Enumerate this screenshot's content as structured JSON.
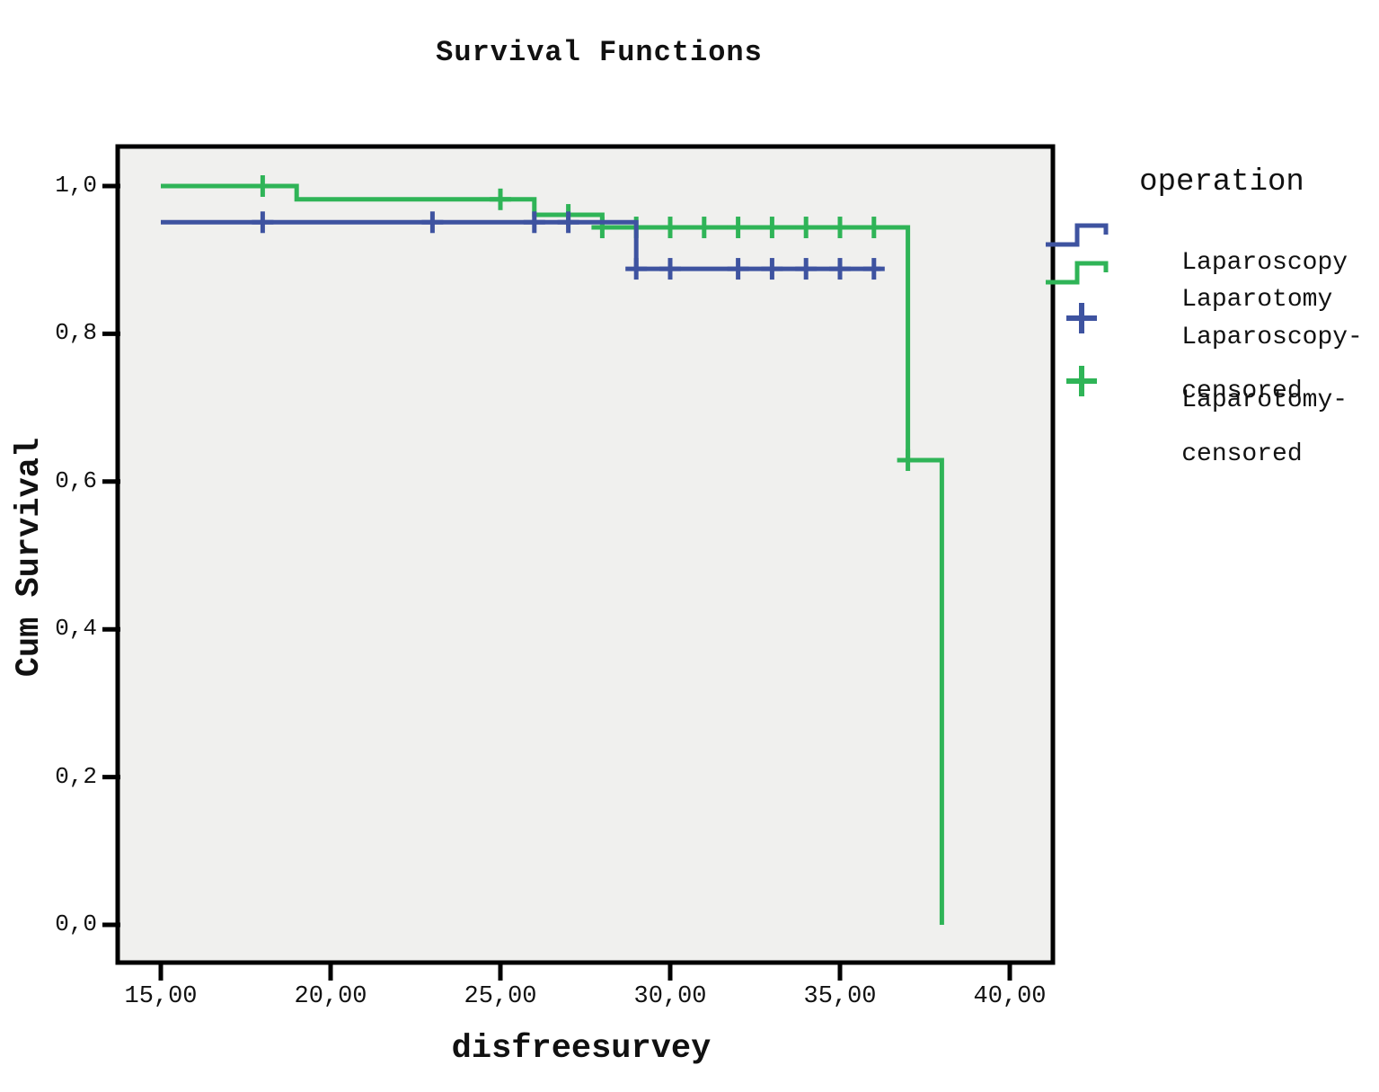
{
  "title": "Survival Functions",
  "axes": {
    "x": {
      "label": "disfreesurvey",
      "tick_labels": [
        "15,00",
        "20,00",
        "25,00",
        "30,00",
        "35,00",
        "40,00"
      ],
      "tick_values": [
        15,
        20,
        25,
        30,
        35,
        40
      ],
      "range": [
        13.7,
        41.3
      ]
    },
    "y": {
      "label": "Cum Survival",
      "tick_labels": [
        "1,0",
        "0,8",
        "0,6",
        "0,4",
        "0,2",
        "0,0"
      ],
      "tick_values": [
        1.0,
        0.8,
        0.6,
        0.4,
        0.2,
        0.0
      ],
      "range": [
        -0.05,
        1.05
      ]
    }
  },
  "legend": {
    "title": "operation",
    "entries": [
      {
        "lines": [
          "Laparoscopy"
        ],
        "symbol": "step-line",
        "color": "#3E53A0"
      },
      {
        "lines": [
          "Laparotomy"
        ],
        "symbol": "step-line",
        "color": "#2FB457"
      },
      {
        "lines": [
          "Laparoscopy-",
          "censored"
        ],
        "symbol": "plus",
        "color": "#3E53A0"
      },
      {
        "lines": [
          "Laparotomy-",
          "censored"
        ],
        "symbol": "plus",
        "color": "#2FB457"
      }
    ]
  },
  "colors": {
    "laparoscopy": "#3E53A0",
    "laparotomy": "#2FB457",
    "plot_background": "#F0F0EE",
    "frame": "#000000"
  },
  "chart_data": {
    "type": "line",
    "subtype": "kaplan-meier-step",
    "title": "Survival Functions",
    "xlabel": "disfreesurvey",
    "ylabel": "Cum Survival",
    "xlim": [
      13.7,
      41.3
    ],
    "ylim": [
      -0.05,
      1.05
    ],
    "grid": false,
    "legend_position": "right",
    "series": [
      {
        "name": "Laparoscopy",
        "color": "#3E53A0",
        "steps": [
          [
            15,
            0.951
          ],
          [
            29,
            0.951
          ],
          [
            29,
            0.888
          ],
          [
            36.2,
            0.888
          ]
        ],
        "censored": [
          [
            18,
            0.951
          ],
          [
            23,
            0.951
          ],
          [
            26,
            0.951
          ],
          [
            27,
            0.951
          ],
          [
            29,
            0.888
          ],
          [
            30,
            0.888
          ],
          [
            32,
            0.888
          ],
          [
            33,
            0.888
          ],
          [
            34,
            0.888
          ],
          [
            35,
            0.888
          ],
          [
            36,
            0.888
          ]
        ]
      },
      {
        "name": "Laparotomy",
        "color": "#2FB457",
        "steps": [
          [
            15,
            1.0
          ],
          [
            19,
            1.0
          ],
          [
            19,
            0.982
          ],
          [
            26,
            0.982
          ],
          [
            26,
            0.961
          ],
          [
            28,
            0.961
          ],
          [
            28,
            0.944
          ],
          [
            37,
            0.944
          ],
          [
            37,
            0.629
          ],
          [
            38,
            0.629
          ],
          [
            38,
            0.0
          ]
        ],
        "censored": [
          [
            18,
            1.0
          ],
          [
            25,
            0.982
          ],
          [
            27,
            0.961
          ],
          [
            28,
            0.944
          ],
          [
            29,
            0.944
          ],
          [
            30,
            0.944
          ],
          [
            31,
            0.944
          ],
          [
            32,
            0.944
          ],
          [
            33,
            0.944
          ],
          [
            34,
            0.944
          ],
          [
            35,
            0.944
          ],
          [
            36,
            0.944
          ],
          [
            37,
            0.629
          ]
        ]
      }
    ]
  }
}
